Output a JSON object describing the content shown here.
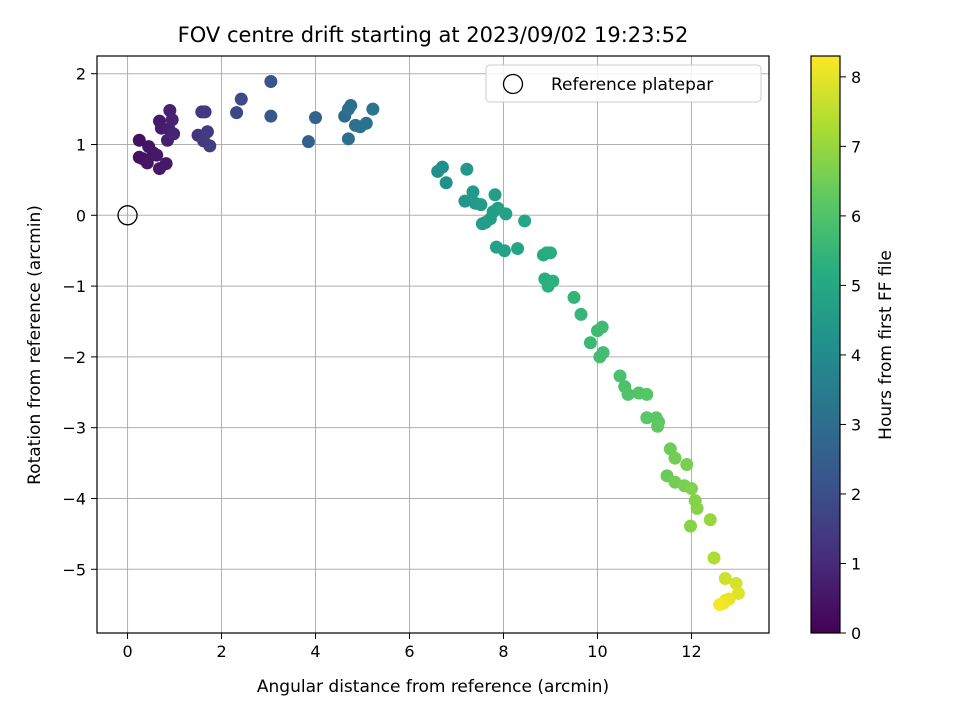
{
  "chart_data": {
    "type": "scatter",
    "title": "FOV centre drift starting at 2023/09/02 19:23:52",
    "xlabel": "Angular distance from reference (arcmin)",
    "ylabel": "Rotation from reference (arcmin)",
    "xlim": [
      -0.65,
      13.65
    ],
    "ylim": [
      -5.9,
      2.25
    ],
    "xticks": [
      0,
      2,
      4,
      6,
      8,
      10,
      12
    ],
    "yticks": [
      -5,
      -4,
      -3,
      -2,
      -1,
      0,
      1,
      2
    ],
    "grid": true,
    "legend": {
      "position": "top-right",
      "entries": [
        "Reference platepar"
      ]
    },
    "reference_point": {
      "x": 0,
      "y": 0,
      "label": "Reference platepar"
    },
    "colorbar": {
      "label": "Hours from first FF file",
      "range": [
        0,
        8.3
      ],
      "ticks": [
        0,
        1,
        2,
        3,
        4,
        5,
        6,
        7,
        8
      ],
      "colormap": "viridis"
    },
    "points": [
      {
        "x": 0.25,
        "y": 1.06,
        "c": 0.35
      },
      {
        "x": 0.25,
        "y": 0.82,
        "c": 0.35
      },
      {
        "x": 0.32,
        "y": 0.8,
        "c": 0.4
      },
      {
        "x": 0.45,
        "y": 0.97,
        "c": 0.45
      },
      {
        "x": 0.42,
        "y": 0.74,
        "c": 0.45
      },
      {
        "x": 0.55,
        "y": 0.88,
        "c": 0.5
      },
      {
        "x": 0.62,
        "y": 0.85,
        "c": 0.55
      },
      {
        "x": 0.68,
        "y": 0.66,
        "c": 0.55
      },
      {
        "x": 0.82,
        "y": 0.73,
        "c": 0.6
      },
      {
        "x": 0.68,
        "y": 1.33,
        "c": 0.6
      },
      {
        "x": 0.72,
        "y": 1.23,
        "c": 0.65
      },
      {
        "x": 0.85,
        "y": 1.06,
        "c": 0.7
      },
      {
        "x": 0.88,
        "y": 1.22,
        "c": 0.75
      },
      {
        "x": 0.9,
        "y": 1.48,
        "c": 0.8
      },
      {
        "x": 0.95,
        "y": 1.35,
        "c": 0.85
      },
      {
        "x": 0.98,
        "y": 1.15,
        "c": 0.85
      },
      {
        "x": 1.5,
        "y": 1.13,
        "c": 1.3
      },
      {
        "x": 1.58,
        "y": 1.46,
        "c": 1.35
      },
      {
        "x": 1.65,
        "y": 1.46,
        "c": 1.4
      },
      {
        "x": 1.62,
        "y": 1.05,
        "c": 1.4
      },
      {
        "x": 1.7,
        "y": 1.18,
        "c": 1.45
      },
      {
        "x": 1.75,
        "y": 0.98,
        "c": 1.5
      },
      {
        "x": 2.32,
        "y": 1.45,
        "c": 1.8
      },
      {
        "x": 2.42,
        "y": 1.64,
        "c": 1.9
      },
      {
        "x": 3.05,
        "y": 1.89,
        "c": 2.2
      },
      {
        "x": 3.05,
        "y": 1.4,
        "c": 2.3
      },
      {
        "x": 3.85,
        "y": 1.04,
        "c": 2.6
      },
      {
        "x": 4.0,
        "y": 1.38,
        "c": 2.7
      },
      {
        "x": 4.62,
        "y": 1.4,
        "c": 2.9
      },
      {
        "x": 4.7,
        "y": 1.5,
        "c": 3.0
      },
      {
        "x": 4.75,
        "y": 1.55,
        "c": 3.0
      },
      {
        "x": 4.7,
        "y": 1.08,
        "c": 3.05
      },
      {
        "x": 4.85,
        "y": 1.27,
        "c": 3.1
      },
      {
        "x": 4.95,
        "y": 1.25,
        "c": 3.1
      },
      {
        "x": 5.08,
        "y": 1.3,
        "c": 3.15
      },
      {
        "x": 5.22,
        "y": 1.5,
        "c": 3.2
      },
      {
        "x": 6.6,
        "y": 0.62,
        "c": 4.1
      },
      {
        "x": 6.7,
        "y": 0.68,
        "c": 4.15
      },
      {
        "x": 6.78,
        "y": 0.46,
        "c": 4.2
      },
      {
        "x": 7.18,
        "y": 0.2,
        "c": 4.4
      },
      {
        "x": 7.22,
        "y": 0.65,
        "c": 4.45
      },
      {
        "x": 7.35,
        "y": 0.33,
        "c": 4.5
      },
      {
        "x": 7.4,
        "y": 0.17,
        "c": 4.5
      },
      {
        "x": 7.52,
        "y": 0.15,
        "c": 4.55
      },
      {
        "x": 7.55,
        "y": -0.12,
        "c": 4.6
      },
      {
        "x": 7.62,
        "y": -0.1,
        "c": 4.6
      },
      {
        "x": 7.72,
        "y": -0.05,
        "c": 4.65
      },
      {
        "x": 7.78,
        "y": 0.05,
        "c": 4.65
      },
      {
        "x": 7.82,
        "y": 0.29,
        "c": 4.7
      },
      {
        "x": 7.88,
        "y": 0.1,
        "c": 4.7
      },
      {
        "x": 7.85,
        "y": -0.45,
        "c": 4.75
      },
      {
        "x": 8.02,
        "y": -0.5,
        "c": 4.8
      },
      {
        "x": 8.05,
        "y": 0.02,
        "c": 4.8
      },
      {
        "x": 8.3,
        "y": -0.47,
        "c": 4.9
      },
      {
        "x": 8.45,
        "y": -0.08,
        "c": 4.95
      },
      {
        "x": 8.85,
        "y": -0.56,
        "c": 5.1
      },
      {
        "x": 8.92,
        "y": -0.53,
        "c": 5.15
      },
      {
        "x": 9.0,
        "y": -0.53,
        "c": 5.2
      },
      {
        "x": 8.88,
        "y": -0.9,
        "c": 5.2
      },
      {
        "x": 8.95,
        "y": -1.0,
        "c": 5.25
      },
      {
        "x": 9.05,
        "y": -0.93,
        "c": 5.3
      },
      {
        "x": 9.5,
        "y": -1.16,
        "c": 5.45
      },
      {
        "x": 9.65,
        "y": -1.4,
        "c": 5.5
      },
      {
        "x": 9.85,
        "y": -1.8,
        "c": 5.6
      },
      {
        "x": 10.0,
        "y": -1.63,
        "c": 5.65
      },
      {
        "x": 10.1,
        "y": -1.58,
        "c": 5.7
      },
      {
        "x": 10.05,
        "y": -2.0,
        "c": 5.75
      },
      {
        "x": 10.12,
        "y": -1.94,
        "c": 5.75
      },
      {
        "x": 10.48,
        "y": -2.27,
        "c": 5.9
      },
      {
        "x": 10.58,
        "y": -2.42,
        "c": 5.95
      },
      {
        "x": 10.65,
        "y": -2.53,
        "c": 6.0
      },
      {
        "x": 10.88,
        "y": -2.51,
        "c": 6.05
      },
      {
        "x": 11.05,
        "y": -2.53,
        "c": 6.1
      },
      {
        "x": 11.05,
        "y": -2.86,
        "c": 6.15
      },
      {
        "x": 11.25,
        "y": -2.86,
        "c": 6.2
      },
      {
        "x": 11.3,
        "y": -2.92,
        "c": 6.2
      },
      {
        "x": 11.28,
        "y": -2.98,
        "c": 6.25
      },
      {
        "x": 11.48,
        "y": -3.68,
        "c": 6.4
      },
      {
        "x": 11.55,
        "y": -3.3,
        "c": 6.45
      },
      {
        "x": 11.65,
        "y": -3.43,
        "c": 6.5
      },
      {
        "x": 11.65,
        "y": -3.77,
        "c": 6.55
      },
      {
        "x": 11.85,
        "y": -3.82,
        "c": 6.6
      },
      {
        "x": 11.9,
        "y": -3.52,
        "c": 6.6
      },
      {
        "x": 12.0,
        "y": -3.86,
        "c": 6.7
      },
      {
        "x": 12.08,
        "y": -4.03,
        "c": 6.75
      },
      {
        "x": 12.12,
        "y": -4.14,
        "c": 6.8
      },
      {
        "x": 11.98,
        "y": -4.39,
        "c": 6.8
      },
      {
        "x": 12.4,
        "y": -4.3,
        "c": 7.0
      },
      {
        "x": 12.48,
        "y": -4.84,
        "c": 7.3
      },
      {
        "x": 12.72,
        "y": -5.13,
        "c": 7.7
      },
      {
        "x": 12.95,
        "y": -5.2,
        "c": 7.8
      },
      {
        "x": 13.0,
        "y": -5.34,
        "c": 7.9
      },
      {
        "x": 12.72,
        "y": -5.44,
        "c": 8.0
      },
      {
        "x": 12.8,
        "y": -5.42,
        "c": 8.05
      },
      {
        "x": 12.68,
        "y": -5.48,
        "c": 8.1
      },
      {
        "x": 12.6,
        "y": -5.5,
        "c": 8.2
      }
    ]
  }
}
